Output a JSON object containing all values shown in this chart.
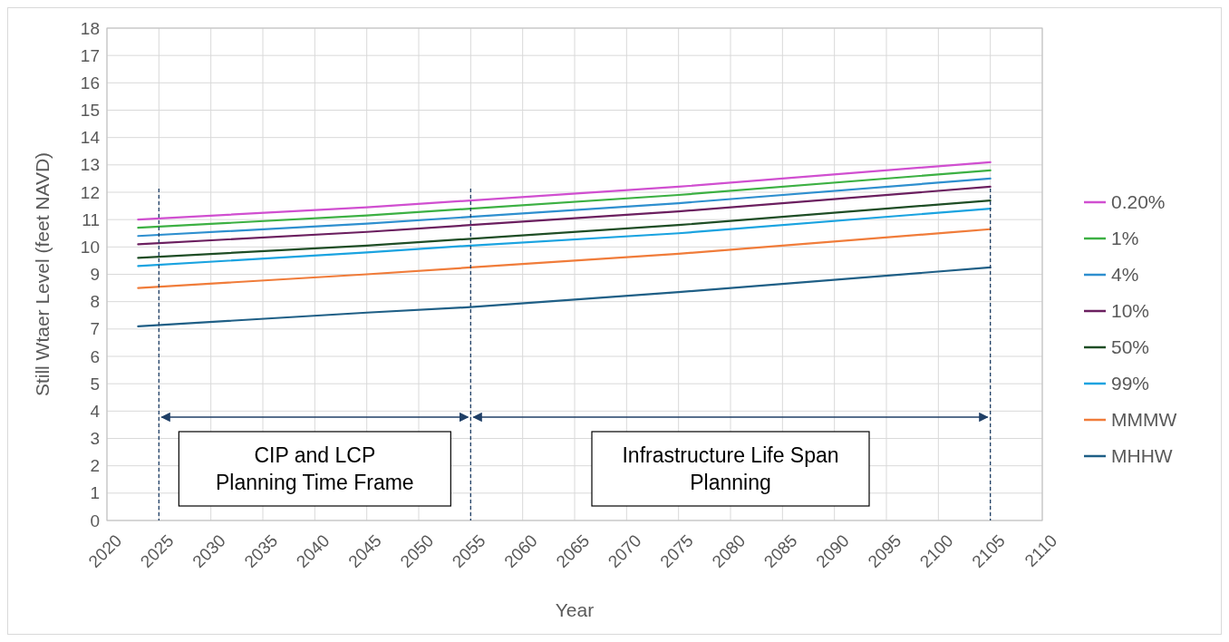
{
  "chart_data": {
    "type": "line",
    "xlabel": "Year",
    "ylabel": "Still Wtaer Level  (feet NAVD)",
    "x": [
      2023,
      2045,
      2055,
      2075,
      2105
    ],
    "series": [
      {
        "name": "0.20%",
        "color": "#d04fd0",
        "values": [
          11.0,
          11.45,
          11.7,
          12.2,
          13.1
        ]
      },
      {
        "name": "1%",
        "color": "#3cb043",
        "values": [
          10.7,
          11.15,
          11.4,
          11.9,
          12.8
        ]
      },
      {
        "name": "4%",
        "color": "#2e8fcf",
        "values": [
          10.4,
          10.85,
          11.1,
          11.6,
          12.5
        ]
      },
      {
        "name": "10%",
        "color": "#6b1f5f",
        "values": [
          10.1,
          10.55,
          10.8,
          11.3,
          12.2
        ]
      },
      {
        "name": "50%",
        "color": "#1e4d25",
        "values": [
          9.6,
          10.05,
          10.3,
          10.8,
          11.7
        ]
      },
      {
        "name": "99%",
        "color": "#1aa3e0",
        "values": [
          9.3,
          9.8,
          10.05,
          10.5,
          11.4
        ]
      },
      {
        "name": "MMMW",
        "color": "#f07c3a",
        "values": [
          8.5,
          9.0,
          9.25,
          9.75,
          10.65
        ]
      },
      {
        "name": "MHHW",
        "color": "#1f5f86",
        "values": [
          7.1,
          7.6,
          7.8,
          8.35,
          9.25
        ]
      }
    ],
    "xlim": [
      2020,
      2110
    ],
    "xticks": [
      2020,
      2025,
      2030,
      2035,
      2040,
      2045,
      2050,
      2055,
      2060,
      2065,
      2070,
      2075,
      2080,
      2085,
      2090,
      2095,
      2100,
      2105,
      2110
    ],
    "ylim": [
      0,
      18
    ],
    "yticks": [
      0,
      1,
      2,
      3,
      4,
      5,
      6,
      7,
      8,
      9,
      10,
      11,
      12,
      13,
      14,
      15,
      16,
      17,
      18
    ],
    "grid": true,
    "legend": "right",
    "marker": "none",
    "line_style": "solid",
    "ref_lines": [
      {
        "axis": "x",
        "value": 2025,
        "color": "#1f3f66",
        "line_style": "dashed"
      },
      {
        "axis": "x",
        "value": 2055,
        "color": "#1f3f66",
        "line_style": "dashed"
      },
      {
        "axis": "x",
        "value": 2105,
        "color": "#1f3f66",
        "line_style": "dashed"
      }
    ],
    "annotations": [
      "CIP and LCP\nPlanning Time Frame",
      "Infrastructure Life Span\nPlanning"
    ]
  }
}
